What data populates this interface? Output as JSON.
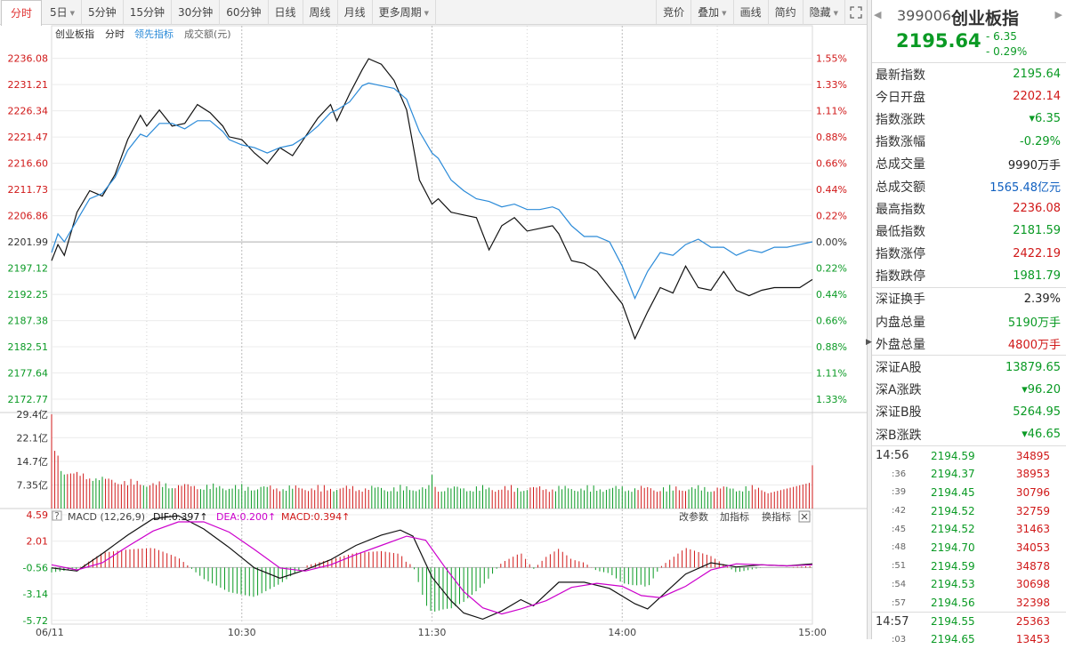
{
  "toolbar": {
    "left": [
      {
        "label": "分时",
        "active": true,
        "caret": false
      },
      {
        "label": "5日",
        "active": false,
        "caret": true
      },
      {
        "label": "5分钟",
        "active": false,
        "caret": false
      },
      {
        "label": "15分钟",
        "active": false,
        "caret": false
      },
      {
        "label": "30分钟",
        "active": false,
        "caret": false
      },
      {
        "label": "60分钟",
        "active": false,
        "caret": false
      },
      {
        "label": "日线",
        "active": false,
        "caret": false
      },
      {
        "label": "周线",
        "active": false,
        "caret": false
      },
      {
        "label": "月线",
        "active": false,
        "caret": false
      },
      {
        "label": "更多周期",
        "active": false,
        "caret": true
      }
    ],
    "right": [
      {
        "label": "竞价",
        "caret": false
      },
      {
        "label": "叠加",
        "caret": true
      },
      {
        "label": "画线",
        "caret": false
      },
      {
        "label": "简约",
        "caret": false
      },
      {
        "label": "隐藏",
        "caret": true
      }
    ],
    "expand_icon": "expand-icon"
  },
  "chart_legend": {
    "name": "创业板指",
    "mode": "分时",
    "leading": "领先指标",
    "volume": "成交额(元)"
  },
  "colors": {
    "price_line": "#111111",
    "leading_line": "#2a8ad8",
    "up": "#d01818",
    "down": "#0a9a24",
    "dea": "#cc00cc"
  },
  "chart_data": [
    {
      "type": "line",
      "panel": "price",
      "y_ticks": [
        "2236.08",
        "2231.21",
        "2226.34",
        "2221.47",
        "2216.60",
        "2211.73",
        "2206.86",
        "2201.99",
        "2197.12",
        "2192.25",
        "2187.38",
        "2182.51",
        "2177.64",
        "2172.77"
      ],
      "pct_ticks": [
        "1.55%",
        "1.33%",
        "1.11%",
        "0.88%",
        "0.66%",
        "0.44%",
        "0.22%",
        "0.00%",
        "0.22%",
        "0.44%",
        "0.66%",
        "0.88%",
        "1.11%",
        "1.33%"
      ],
      "prev_close": 2201.99,
      "ylim": [
        2170.3,
        2238.5
      ],
      "x_ticks": [
        "06/11",
        "10:30",
        "11:30",
        "14:00",
        "15:00"
      ],
      "series": [
        {
          "name": "创业板指",
          "x": [
            0,
            2,
            4,
            8,
            12,
            16,
            20,
            24,
            28,
            30,
            34,
            38,
            42,
            46,
            50,
            54,
            56,
            60,
            64,
            68,
            72,
            76,
            80,
            84,
            88,
            90,
            94,
            98,
            100,
            104,
            108,
            112,
            116,
            120,
            122,
            126,
            130,
            134,
            138,
            142,
            146,
            150,
            154,
            158,
            160,
            164,
            168,
            172,
            176,
            180,
            184,
            188,
            192,
            196,
            200,
            204,
            208,
            212,
            216,
            220,
            224,
            228,
            232,
            236,
            240
          ],
          "y": [
            2198.5,
            2201.5,
            2199.5,
            2207.5,
            2211.5,
            2210.5,
            2214.5,
            2221.0,
            2225.5,
            2223.5,
            2226.5,
            2223.5,
            2224.0,
            2227.5,
            2226.0,
            2223.5,
            2221.5,
            2221.0,
            2218.5,
            2216.5,
            2219.5,
            2218.0,
            2221.5,
            2225.0,
            2227.5,
            2224.5,
            2229.5,
            2234.0,
            2236.0,
            2235.0,
            2232.0,
            2226.5,
            2213.5,
            2209.0,
            2210.0,
            2207.5,
            2207.0,
            2206.5,
            2200.5,
            2205.0,
            2206.5,
            2204.0,
            2204.5,
            2205.0,
            2203.5,
            2198.5,
            2198.0,
            2196.5,
            2193.5,
            2190.5,
            2184.0,
            2189.0,
            2193.5,
            2192.5,
            2197.5,
            2193.5,
            2193.0,
            2196.5,
            2193.0,
            2192.0,
            2193.0,
            2193.5,
            2193.5,
            2193.5,
            2195.0
          ]
        },
        {
          "name": "领先指标",
          "x": [
            0,
            2,
            4,
            8,
            12,
            16,
            20,
            24,
            28,
            30,
            34,
            38,
            42,
            46,
            50,
            54,
            56,
            60,
            64,
            68,
            72,
            76,
            80,
            84,
            88,
            90,
            94,
            98,
            100,
            104,
            108,
            112,
            116,
            120,
            122,
            126,
            130,
            134,
            138,
            142,
            146,
            150,
            154,
            158,
            160,
            164,
            168,
            172,
            176,
            180,
            184,
            188,
            192,
            196,
            200,
            204,
            208,
            212,
            216,
            220,
            224,
            228,
            232,
            236,
            240
          ],
          "y": [
            2200.0,
            2203.5,
            2202.0,
            2206.0,
            2210.0,
            2211.0,
            2214.0,
            2219.0,
            2222.0,
            2221.5,
            2224.0,
            2224.0,
            2223.0,
            2224.5,
            2224.5,
            2222.5,
            2221.0,
            2220.0,
            2219.5,
            2218.5,
            2219.5,
            2220.0,
            2221.5,
            2223.5,
            2226.0,
            2226.5,
            2228.0,
            2231.0,
            2231.5,
            2231.0,
            2230.5,
            2228.5,
            2222.5,
            2218.5,
            2217.5,
            2213.5,
            2211.5,
            2210.0,
            2209.5,
            2208.5,
            2209.0,
            2208.0,
            2208.0,
            2208.5,
            2208.0,
            2205.0,
            2203.0,
            2203.0,
            2202.0,
            2197.5,
            2191.5,
            2196.5,
            2200.0,
            2199.5,
            2201.5,
            2202.5,
            2201.0,
            2201.0,
            2199.5,
            2200.5,
            2200.0,
            2201.0,
            2201.0,
            2201.5,
            2202.0
          ]
        }
      ]
    },
    {
      "type": "bar",
      "panel": "volume",
      "y_ticks": [
        "29.4亿",
        "22.1亿",
        "14.7亿",
        "7.35亿"
      ],
      "ylim": [
        0,
        29.4
      ],
      "unit": "亿元"
    },
    {
      "type": "line",
      "panel": "macd",
      "indicator": "MACD (12,26,9)",
      "dif_label": "DIF:0.397↑",
      "dea_label": "DEA:0.200↑",
      "macd_label": "MACD:0.394↑",
      "y_ticks": [
        "4.59",
        "2.01",
        "-0.56",
        "-3.14",
        "-5.72"
      ],
      "ylim": [
        -6.0,
        5.2
      ],
      "series": [
        {
          "name": "DIF",
          "x": [
            0,
            8,
            16,
            24,
            32,
            40,
            48,
            56,
            64,
            72,
            80,
            88,
            96,
            104,
            110,
            114,
            120,
            126,
            130,
            136,
            142,
            148,
            152,
            160,
            168,
            176,
            184,
            188,
            194,
            200,
            208,
            216,
            224,
            232,
            240
          ],
          "y": [
            -0.6,
            -0.9,
            0.8,
            2.6,
            4.2,
            4.5,
            3.2,
            1.4,
            -0.6,
            -1.6,
            -0.8,
            0.2,
            1.6,
            2.6,
            3.1,
            2.5,
            -1.5,
            -3.8,
            -5.0,
            -5.6,
            -4.8,
            -3.7,
            -4.3,
            -2.0,
            -2.0,
            -2.6,
            -4.1,
            -4.6,
            -2.9,
            -1.2,
            -0.1,
            -0.5,
            -0.3,
            -0.4,
            -0.2
          ]
        },
        {
          "name": "DEA",
          "x": [
            0,
            8,
            16,
            24,
            32,
            40,
            48,
            56,
            64,
            72,
            80,
            88,
            96,
            104,
            112,
            118,
            124,
            130,
            136,
            142,
            148,
            156,
            164,
            172,
            180,
            186,
            192,
            200,
            208,
            216,
            224,
            232,
            240
          ],
          "y": [
            -0.3,
            -0.8,
            -0.1,
            1.5,
            3.0,
            3.9,
            3.9,
            2.9,
            1.2,
            -0.6,
            -0.9,
            -0.3,
            0.7,
            1.6,
            2.5,
            2.1,
            -0.5,
            -2.9,
            -4.5,
            -5.1,
            -4.6,
            -3.8,
            -2.5,
            -2.1,
            -2.4,
            -3.3,
            -3.5,
            -2.4,
            -0.8,
            -0.2,
            -0.3,
            -0.4,
            -0.3
          ]
        }
      ],
      "tools": [
        "改参数",
        "加指标",
        "换指标"
      ]
    }
  ],
  "quote": {
    "code": "399006",
    "name": "创业板指",
    "price": "2195.64",
    "change": "- 6.35",
    "change_pct": "- 0.29%"
  },
  "info_groups": [
    [
      {
        "label": "最新指数",
        "value": "2195.64",
        "color": "green"
      },
      {
        "label": "今日开盘",
        "value": "2202.14",
        "color": "red"
      },
      {
        "label": "指数涨跌",
        "value": "▾6.35",
        "color": "green"
      },
      {
        "label": "指数涨幅",
        "value": "-0.29%",
        "color": "green"
      },
      {
        "label": "总成交量",
        "value": "9990万手",
        "color": "dark"
      },
      {
        "label": "总成交额",
        "value": "1565.48亿元",
        "color": "blue"
      },
      {
        "label": "最高指数",
        "value": "2236.08",
        "color": "red"
      },
      {
        "label": "最低指数",
        "value": "2181.59",
        "color": "green"
      },
      {
        "label": "指数涨停",
        "value": "2422.19",
        "color": "red"
      },
      {
        "label": "指数跌停",
        "value": "1981.79",
        "color": "green"
      }
    ],
    [
      {
        "label": "深证换手",
        "value": "2.39%",
        "color": "dark"
      },
      {
        "label": "内盘总量",
        "value": "5190万手",
        "color": "green"
      },
      {
        "label": "外盘总量",
        "value": "4800万手",
        "color": "red"
      }
    ],
    [
      {
        "label": "深证A股",
        "value": "13879.65",
        "color": "green"
      },
      {
        "label": "深A涨跌",
        "value": "▾96.20",
        "color": "green"
      },
      {
        "label": "深证B股",
        "value": "5264.95",
        "color": "green"
      },
      {
        "label": "深B涨跌",
        "value": "▾46.65",
        "color": "green"
      }
    ]
  ],
  "ticks": [
    {
      "time": "14:56",
      "major": true,
      "price": "2194.59",
      "vol": "34895"
    },
    {
      "time": ":36",
      "major": false,
      "price": "2194.37",
      "vol": "38953"
    },
    {
      "time": ":39",
      "major": false,
      "price": "2194.45",
      "vol": "30796"
    },
    {
      "time": ":42",
      "major": false,
      "price": "2194.52",
      "vol": "32759"
    },
    {
      "time": ":45",
      "major": false,
      "price": "2194.52",
      "vol": "31463"
    },
    {
      "time": ":48",
      "major": false,
      "price": "2194.70",
      "vol": "34053"
    },
    {
      "time": ":51",
      "major": false,
      "price": "2194.59",
      "vol": "34878"
    },
    {
      "time": ":54",
      "major": false,
      "price": "2194.53",
      "vol": "30698"
    },
    {
      "time": ":57",
      "major": false,
      "price": "2194.56",
      "vol": "32398"
    },
    {
      "time": "14:57",
      "major": true,
      "price": "2194.55",
      "vol": "25363",
      "sep": true
    },
    {
      "time": ":03",
      "major": false,
      "price": "2194.65",
      "vol": "13453"
    }
  ]
}
